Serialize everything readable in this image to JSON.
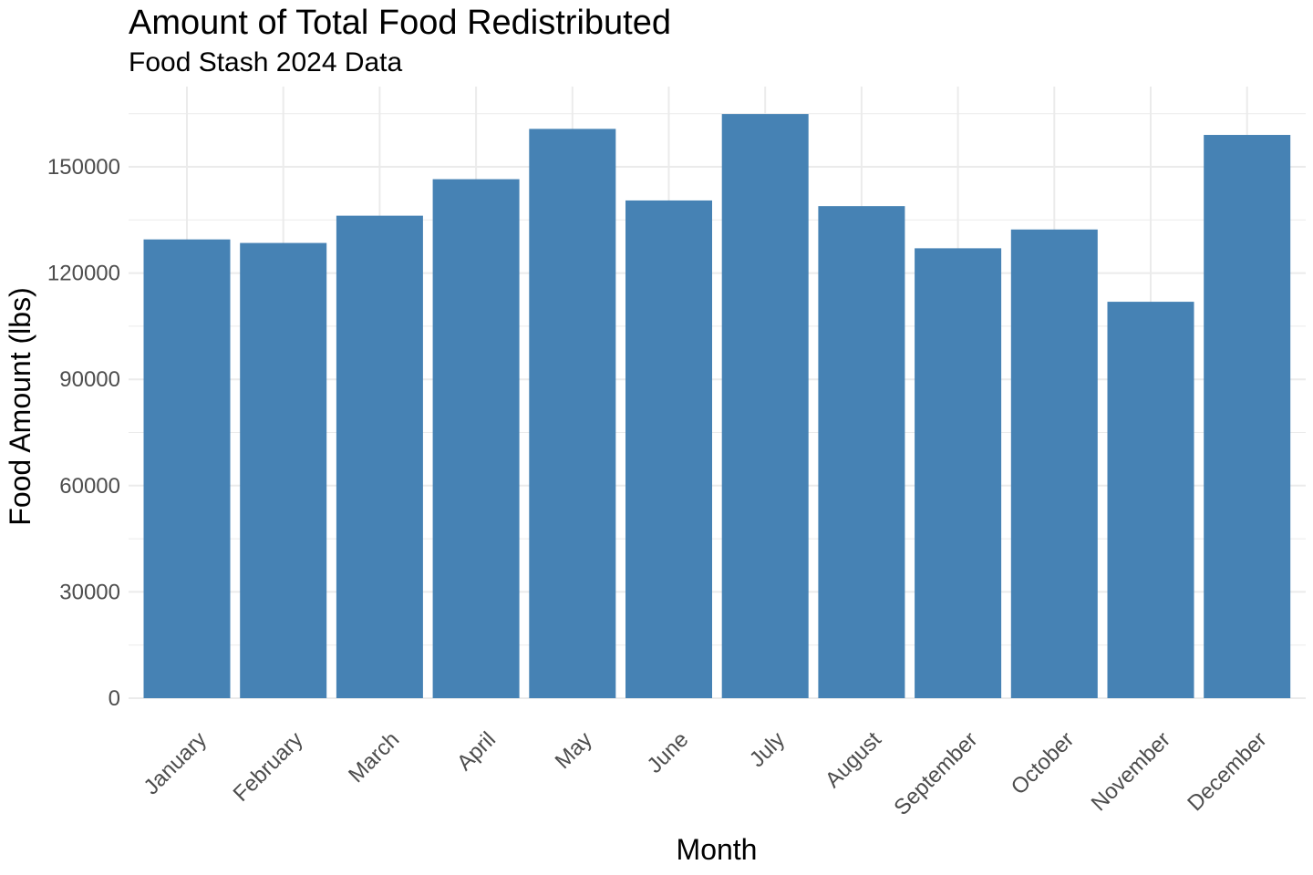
{
  "chart_data": {
    "type": "bar",
    "title": "Amount of Total Food Redistributed",
    "subtitle": "Food Stash 2024 Data",
    "xlabel": "Month",
    "ylabel": "Food Amount (lbs)",
    "categories": [
      "January",
      "February",
      "March",
      "April",
      "May",
      "June",
      "July",
      "August",
      "September",
      "October",
      "November",
      "December"
    ],
    "values": [
      129500,
      128500,
      136200,
      146500,
      160700,
      140500,
      164900,
      138900,
      127000,
      132300,
      111900,
      159000
    ],
    "ylim": [
      0,
      165000
    ],
    "yticks": [
      0,
      30000,
      60000,
      90000,
      120000,
      150000
    ],
    "ytick_labels": [
      "0",
      "30000",
      "60000",
      "90000",
      "120000",
      "150000"
    ],
    "grid": true,
    "legend": "none",
    "colors": {
      "bar": "#4682b4",
      "grid": "#ebebeb",
      "tick_text": "#4d4d4d"
    }
  }
}
